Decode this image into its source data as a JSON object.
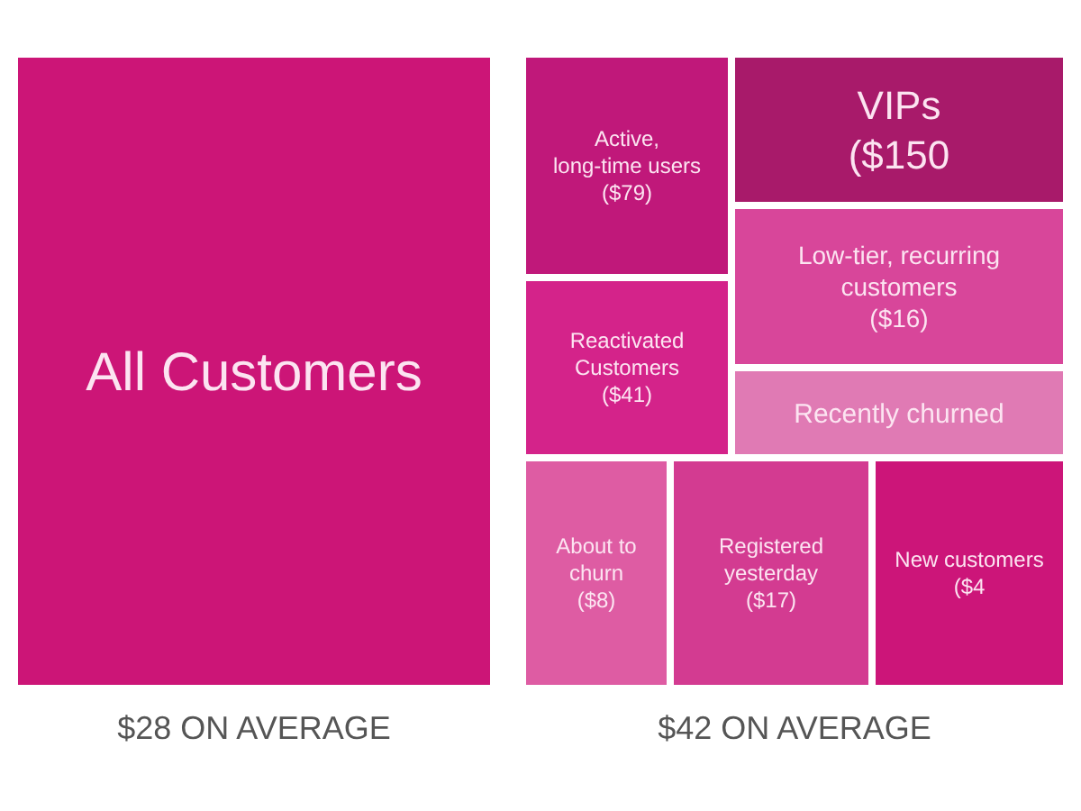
{
  "chart_data": [
    {
      "type": "other",
      "categories": [
        "All Customers"
      ],
      "colors": [
        "#cc1577"
      ],
      "annotations": [
        "$28 ON AVERAGE"
      ]
    },
    {
      "type": "other",
      "categories": [
        "Active, long-time users",
        "VIPs",
        "Reactivated Customers",
        "Low-tier, recurring customers",
        "Recently churned",
        "About to churn",
        "Registered yesterday",
        "New customers"
      ],
      "values": [
        79,
        150,
        41,
        16,
        null,
        8,
        17,
        4
      ],
      "value_labels": [
        " ($79)",
        " ($150",
        "($41)",
        " ($16)",
        null,
        " ($8)",
        " ($17)",
        " ($4"
      ],
      "colors": [
        "#c0187a",
        "#a81a6a",
        "#d4238a",
        "#d8469a",
        "#e07ab4",
        "#de5ca3",
        "#d33b91",
        "#cc1579"
      ],
      "annotations": [
        "$42 ON AVERAGE"
      ]
    }
  ]
}
